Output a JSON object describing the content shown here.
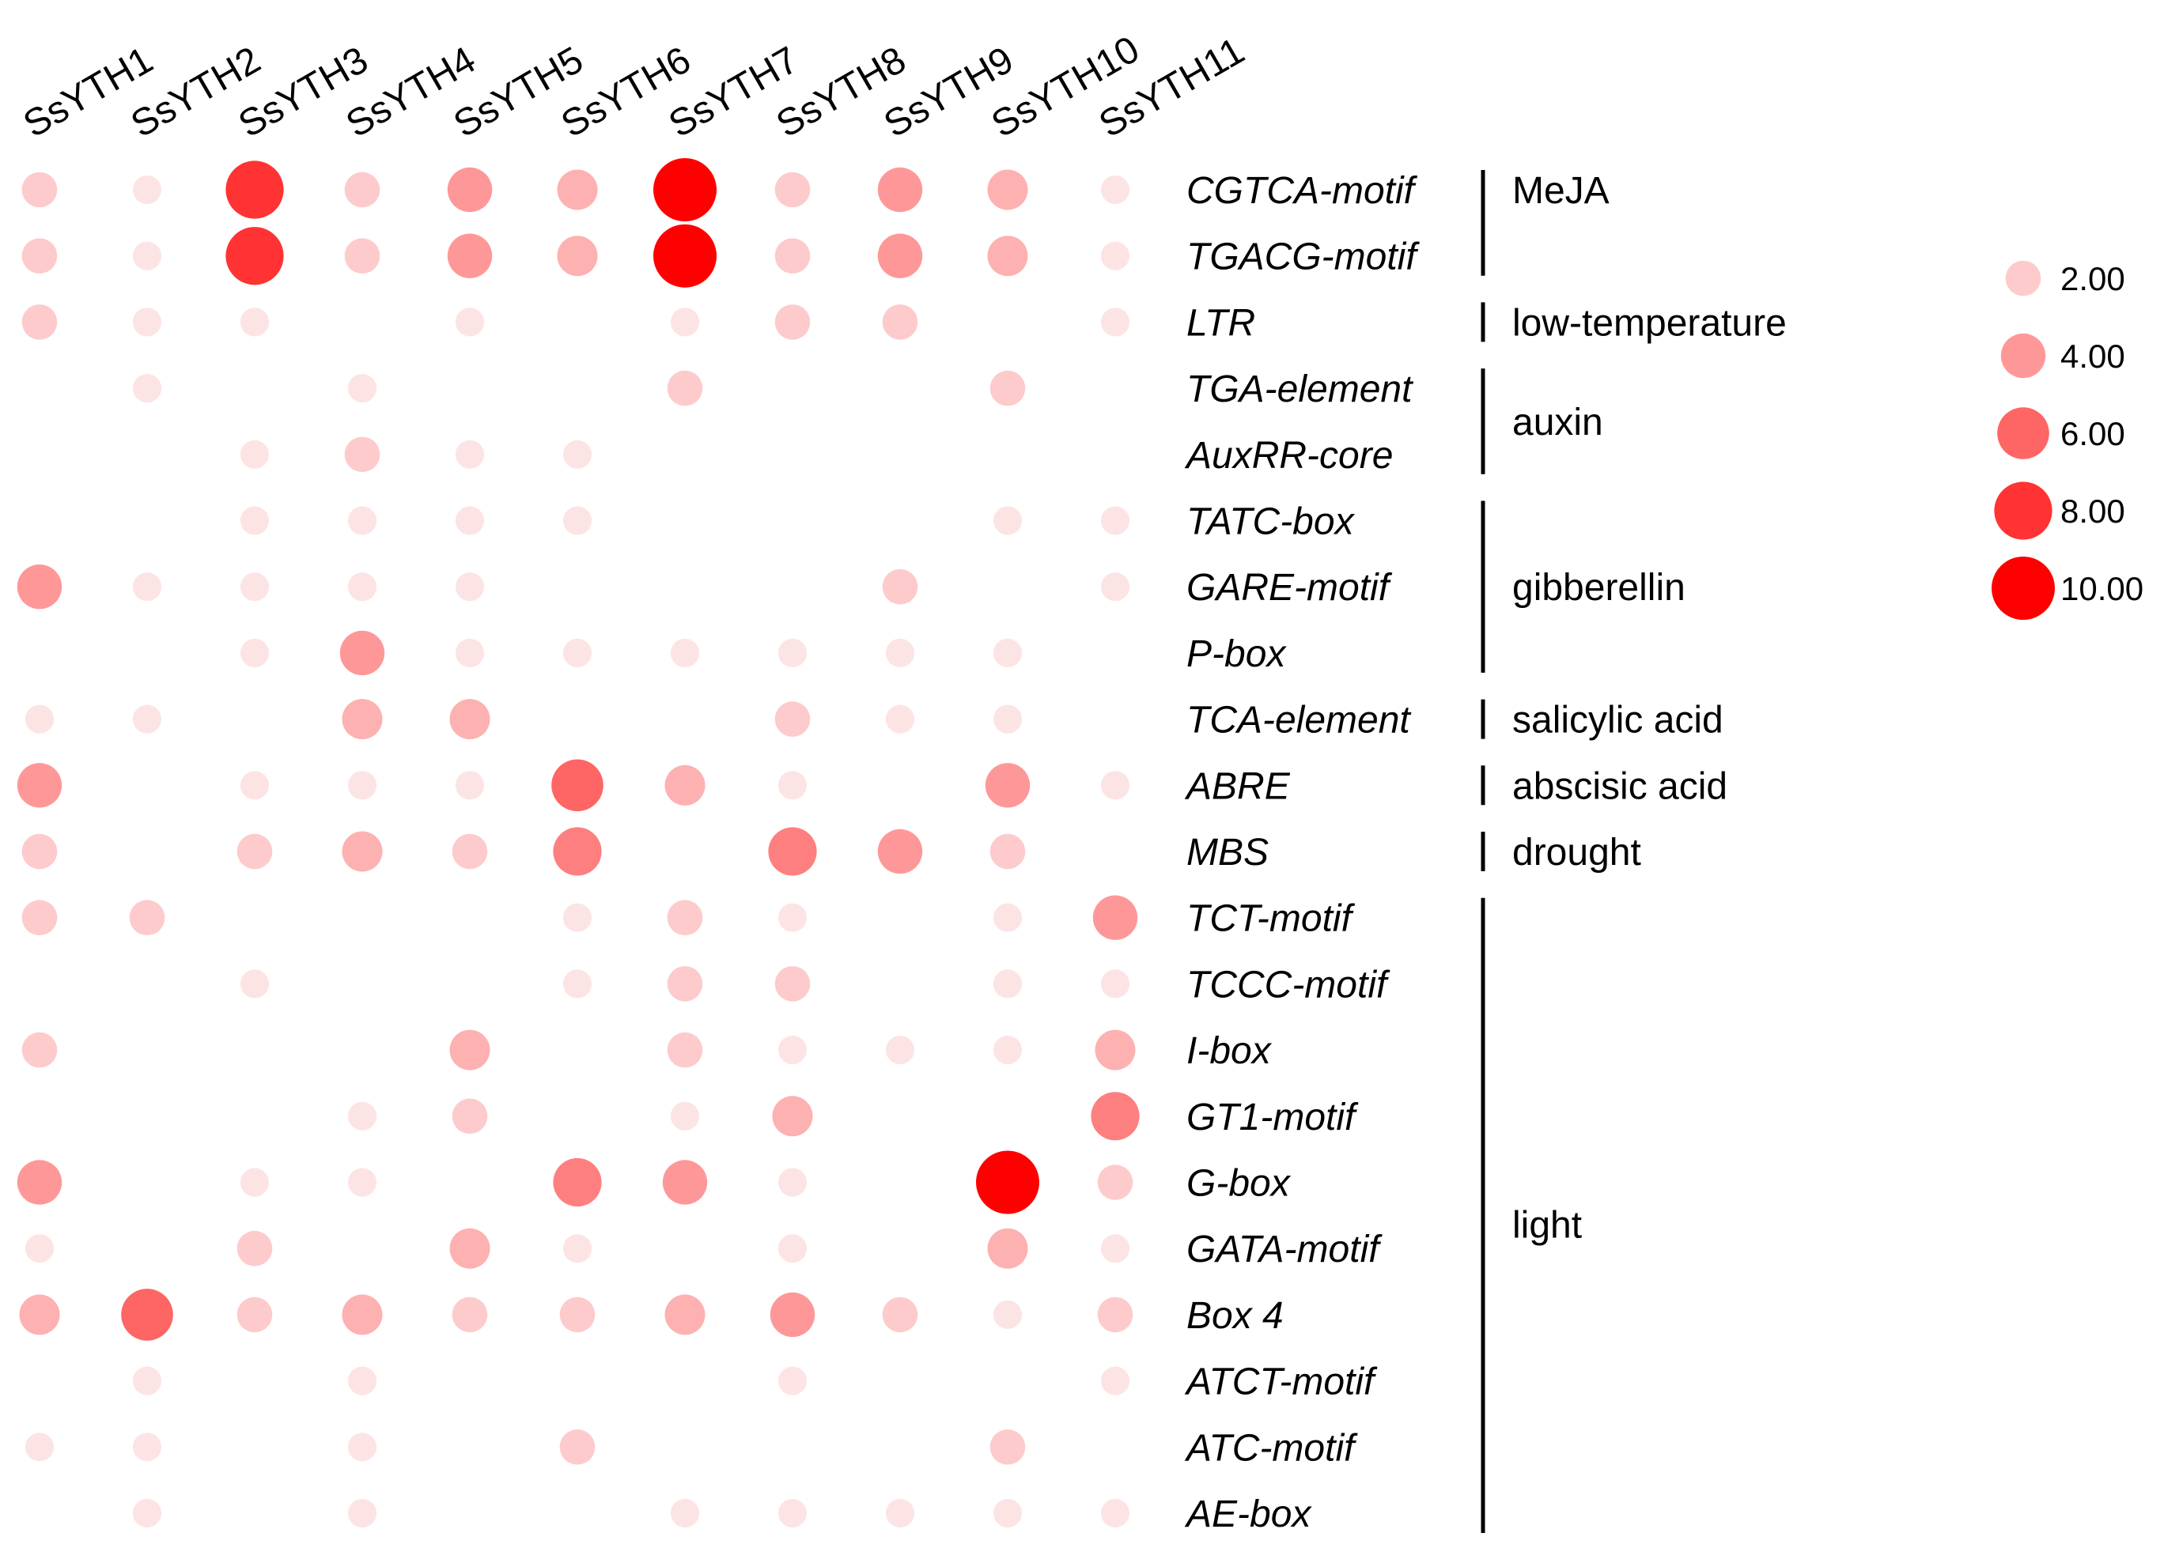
{
  "chart_data": {
    "type": "bubble-matrix",
    "genes": [
      "SsYTH1",
      "SsYTH2",
      "SsYTH3",
      "SsYTH4",
      "SsYTH5",
      "SsYTH6",
      "SsYTH7",
      "SsYTH8",
      "SsYTH9",
      "SsYTH10",
      "SsYTH11"
    ],
    "motifs": [
      "CGTCA-motif",
      "TGACG-motif",
      "LTR",
      "TGA-element",
      "AuxRR-core",
      "TATC-box",
      "GARE-motif",
      "P-box",
      "TCA-element",
      "ABRE",
      "MBS",
      "TCT-motif",
      "TCCC-motif",
      "I-box",
      "GT1-motif",
      "G-box",
      "GATA-motif",
      "Box 4",
      "ATCT-motif",
      "ATC-motif",
      "AE-box"
    ],
    "values": [
      [
        2,
        1,
        8,
        2,
        4,
        3,
        10,
        2,
        4,
        3,
        1
      ],
      [
        2,
        1,
        8,
        2,
        4,
        3,
        10,
        2,
        4,
        3,
        1
      ],
      [
        2,
        1,
        1,
        0,
        1,
        0,
        1,
        2,
        2,
        0,
        1
      ],
      [
        0,
        1,
        0,
        1,
        0,
        0,
        2,
        0,
        0,
        2,
        0
      ],
      [
        0,
        0,
        1,
        2,
        1,
        1,
        0,
        0,
        0,
        0,
        0
      ],
      [
        0,
        0,
        1,
        1,
        1,
        1,
        0,
        0,
        0,
        1,
        1
      ],
      [
        4,
        1,
        1,
        1,
        1,
        0,
        0,
        0,
        2,
        0,
        1
      ],
      [
        0,
        0,
        1,
        4,
        1,
        1,
        1,
        1,
        1,
        1,
        0
      ],
      [
        1,
        1,
        0,
        3,
        3,
        0,
        0,
        2,
        1,
        1,
        0
      ],
      [
        4,
        0,
        1,
        1,
        1,
        6,
        3,
        1,
        0,
        4,
        1
      ],
      [
        2,
        0,
        2,
        3,
        2,
        5,
        0,
        5,
        4,
        2,
        0
      ],
      [
        2,
        2,
        0,
        0,
        0,
        1,
        2,
        1,
        0,
        1,
        4
      ],
      [
        0,
        0,
        1,
        0,
        0,
        1,
        2,
        2,
        0,
        1,
        1
      ],
      [
        2,
        0,
        0,
        0,
        3,
        0,
        2,
        1,
        1,
        1,
        3
      ],
      [
        0,
        0,
        0,
        1,
        2,
        0,
        1,
        3,
        0,
        0,
        5
      ],
      [
        4,
        0,
        1,
        1,
        0,
        5,
        4,
        1,
        0,
        10,
        2
      ],
      [
        1,
        0,
        2,
        0,
        3,
        1,
        0,
        1,
        0,
        3,
        1
      ],
      [
        3,
        6,
        2,
        3,
        2,
        2,
        3,
        4,
        2,
        1,
        2
      ],
      [
        0,
        1,
        0,
        1,
        0,
        0,
        0,
        1,
        0,
        0,
        1
      ],
      [
        1,
        1,
        0,
        1,
        0,
        2,
        0,
        0,
        0,
        2,
        0
      ],
      [
        0,
        1,
        0,
        1,
        0,
        0,
        1,
        1,
        1,
        1,
        1
      ]
    ],
    "groups": [
      {
        "name": "MeJA",
        "start": 0,
        "end": 1
      },
      {
        "name": "low-temperature",
        "start": 2,
        "end": 2
      },
      {
        "name": "auxin",
        "start": 3,
        "end": 4
      },
      {
        "name": "gibberellin",
        "start": 5,
        "end": 7
      },
      {
        "name": "salicylic acid",
        "start": 8,
        "end": 8
      },
      {
        "name": "abscisic acid",
        "start": 9,
        "end": 9
      },
      {
        "name": "drought",
        "start": 10,
        "end": 10
      },
      {
        "name": "light",
        "start": 11,
        "end": 20
      }
    ],
    "legend": {
      "values": [
        2,
        4,
        6,
        8,
        10
      ],
      "labels": [
        "2.00",
        "4.00",
        "6.00",
        "8.00",
        "10.00"
      ],
      "placement": "right"
    },
    "value_range": [
      0,
      10
    ],
    "colors": {
      "low": "#fde4e4",
      "high": "#ff0000"
    }
  }
}
